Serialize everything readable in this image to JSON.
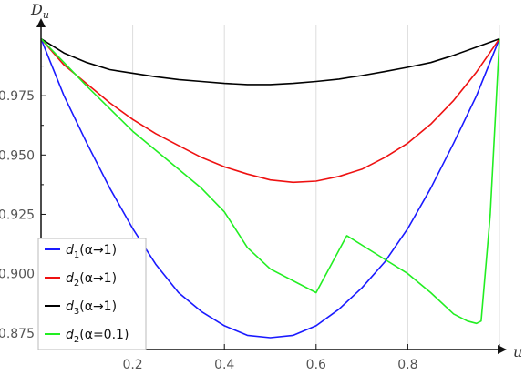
{
  "chart_data": {
    "type": "line",
    "title": "",
    "xlabel": "u",
    "ylabel": "D_u",
    "ylabel_main": "D",
    "ylabel_sub": "u",
    "xlim": [
      0,
      1
    ],
    "ylim": [
      0.868,
      1.0
    ],
    "x_ticks": [
      0.2,
      0.4,
      0.6,
      0.8
    ],
    "x_tick_labels": [
      "0.2",
      "0.4",
      "0.6",
      "0.8"
    ],
    "y_ticks": [
      0.875,
      0.9,
      0.925,
      0.95,
      0.975
    ],
    "y_tick_labels": [
      "0.875",
      "0.900",
      "0.925",
      "0.950",
      "0.975"
    ],
    "grid": "vertical",
    "legend_position": "bottom-left",
    "series": [
      {
        "name": "d1(α→1)",
        "legend_main": "d",
        "legend_sub": "1",
        "legend_rest": "(α→1)",
        "color": "#1a1aff",
        "x": [
          0,
          0.05,
          0.1,
          0.15,
          0.2,
          0.25,
          0.3,
          0.35,
          0.4,
          0.45,
          0.5,
          0.55,
          0.6,
          0.65,
          0.7,
          0.75,
          0.8,
          0.85,
          0.9,
          0.95,
          1.0
        ],
        "y": [
          0.999,
          0.975,
          0.955,
          0.936,
          0.919,
          0.904,
          0.892,
          0.884,
          0.878,
          0.874,
          0.873,
          0.874,
          0.878,
          0.885,
          0.894,
          0.905,
          0.919,
          0.936,
          0.955,
          0.975,
          0.999
        ]
      },
      {
        "name": "d2(α→1)",
        "legend_main": "d",
        "legend_sub": "2",
        "legend_rest": "(α→1)",
        "color": "#ee1111",
        "x": [
          0,
          0.05,
          0.1,
          0.15,
          0.2,
          0.25,
          0.3,
          0.35,
          0.4,
          0.45,
          0.5,
          0.55,
          0.6,
          0.65,
          0.7,
          0.75,
          0.8,
          0.85,
          0.9,
          0.95,
          1.0
        ],
        "y": [
          0.999,
          0.988,
          0.98,
          0.972,
          0.965,
          0.959,
          0.954,
          0.949,
          0.945,
          0.942,
          0.9395,
          0.9385,
          0.939,
          0.941,
          0.944,
          0.949,
          0.955,
          0.963,
          0.973,
          0.985,
          0.999
        ]
      },
      {
        "name": "d3(α→1)",
        "legend_main": "d",
        "legend_sub": "3",
        "legend_rest": "(α→1)",
        "color": "#000000",
        "x": [
          0,
          0.05,
          0.1,
          0.15,
          0.2,
          0.25,
          0.3,
          0.35,
          0.4,
          0.45,
          0.5,
          0.55,
          0.6,
          0.65,
          0.7,
          0.75,
          0.8,
          0.85,
          0.9,
          0.95,
          1.0
        ],
        "y": [
          0.999,
          0.993,
          0.989,
          0.986,
          0.9845,
          0.983,
          0.9818,
          0.981,
          0.9802,
          0.9797,
          0.9797,
          0.9802,
          0.981,
          0.982,
          0.9835,
          0.9852,
          0.987,
          0.989,
          0.992,
          0.9955,
          0.999
        ]
      },
      {
        "name": "d2(α=0.1)",
        "legend_main": "d",
        "legend_sub": "2",
        "legend_rest": "(α=0.1)",
        "color": "#22ee22",
        "x": [
          0,
          0.1,
          0.2,
          0.3,
          0.35,
          0.4,
          0.45,
          0.5,
          0.6,
          0.667,
          0.75,
          0.8,
          0.85,
          0.9,
          0.93,
          0.95,
          0.96,
          0.98,
          1.0
        ],
        "y": [
          0.999,
          0.979,
          0.96,
          0.944,
          0.936,
          0.926,
          0.911,
          0.902,
          0.892,
          0.916,
          0.906,
          0.9,
          0.892,
          0.883,
          0.88,
          0.879,
          0.88,
          0.925,
          0.999
        ]
      }
    ]
  }
}
